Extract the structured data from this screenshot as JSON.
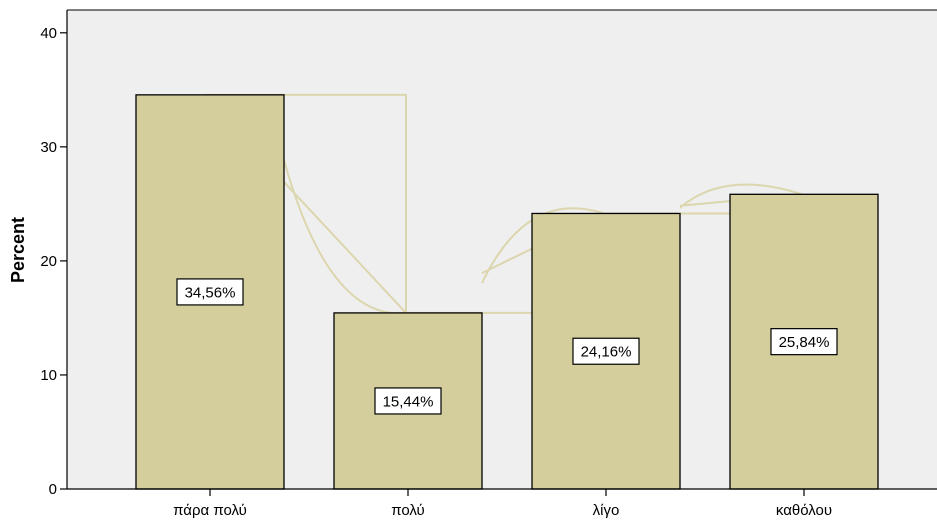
{
  "chart_data": {
    "type": "bar",
    "categories": [
      "πάρα πολύ",
      "πολύ",
      "λίγο",
      "καθόλου"
    ],
    "values": [
      34.56,
      15.44,
      24.16,
      25.84
    ],
    "data_labels": [
      "34,56%",
      "15,44%",
      "24,16%",
      "25,84%"
    ],
    "title": "",
    "xlabel": "",
    "ylabel": "Percent",
    "ylim": [
      0,
      42
    ],
    "yticks": [
      0,
      10,
      20,
      30,
      40
    ],
    "ytick_labels": [
      "0",
      "10",
      "20",
      "30",
      "40"
    ],
    "grid": false,
    "colors": {
      "plot_background": "#EFEFEF",
      "bar_fill": "#D3CE9B",
      "connector_lines": "#DCD6AE",
      "outline": "#000000"
    }
  }
}
